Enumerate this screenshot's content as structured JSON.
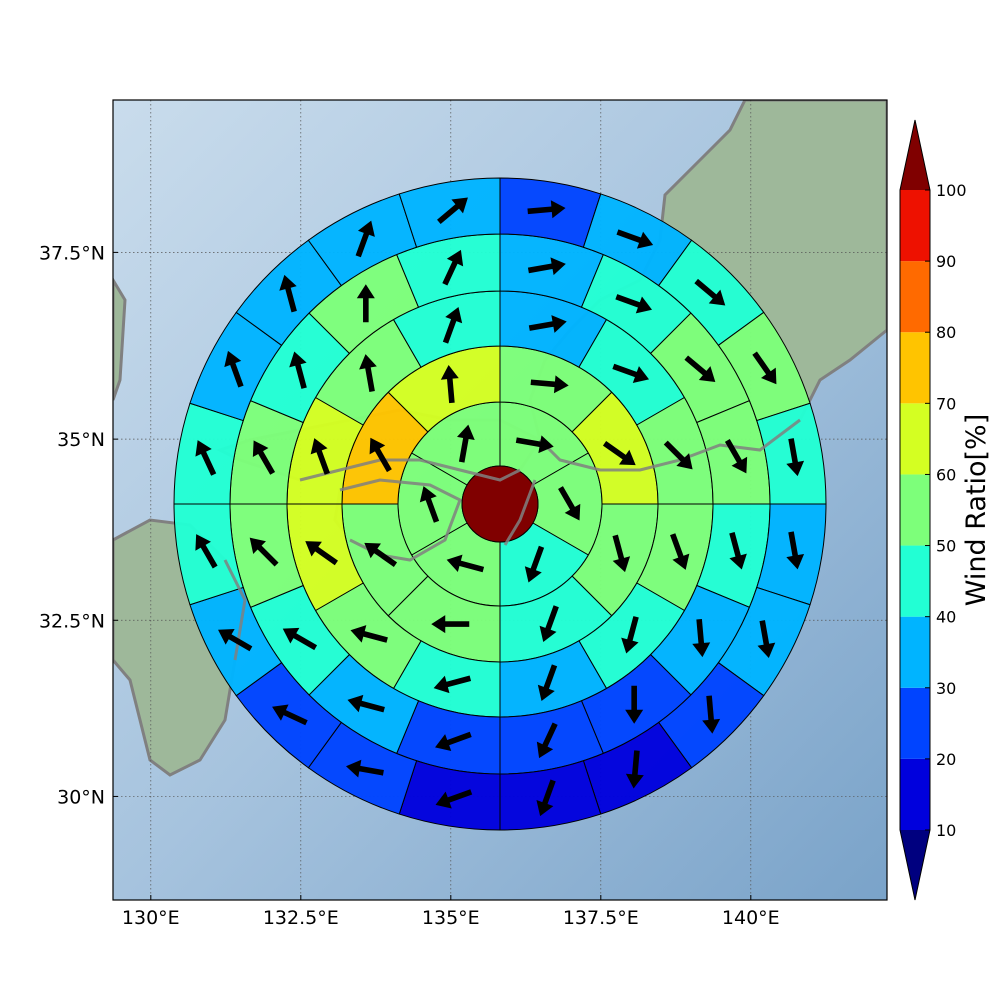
{
  "chart_data": {
    "type": "polar-sector",
    "projection": "mercator",
    "xlim": [
      129.37,
      142.27
    ],
    "ylim": [
      28.5,
      39.48
    ],
    "xticks": [
      {
        "value": 130,
        "label": "130°E"
      },
      {
        "value": 132.5,
        "label": "132.5°E"
      },
      {
        "value": 135,
        "label": "135°E"
      },
      {
        "value": 137.5,
        "label": "137.5°E"
      },
      {
        "value": 140,
        "label": "140°E"
      }
    ],
    "yticks": [
      {
        "value": 30,
        "label": "30°N"
      },
      {
        "value": 32.5,
        "label": "32.5°N"
      },
      {
        "value": 35,
        "label": "35°N"
      },
      {
        "value": 37.5,
        "label": "37.5°N"
      }
    ],
    "grid": true,
    "center_value": 105,
    "rings": [
      {
        "values": [
          55,
          55,
          45,
          55,
          55,
          55
        ],
        "directions": [
          100,
          150,
          200,
          285,
          340,
          10
        ]
      },
      {
        "values": [
          55,
          65,
          55,
          45,
          55,
          55,
          75,
          65
        ],
        "directions": [
          95,
          125,
          165,
          200,
          270,
          305,
          330,
          355
        ]
      },
      {
        "values": [
          35,
          45,
          55,
          55,
          45,
          35,
          45,
          55,
          65,
          65,
          55,
          45
        ],
        "directions": [
          80,
          110,
          135,
          160,
          195,
          200,
          255,
          285,
          305,
          340,
          350,
          20
        ]
      },
      {
        "values": [
          35,
          45,
          55,
          55,
          45,
          35,
          25,
          25,
          25,
          35,
          45,
          55,
          55,
          45,
          55,
          45
        ],
        "directions": [
          80,
          110,
          130,
          150,
          165,
          175,
          180,
          205,
          250,
          285,
          300,
          315,
          330,
          345,
          0,
          25
        ]
      },
      {
        "values": [
          25,
          35,
          45,
          55,
          45,
          35,
          35,
          25,
          15,
          15,
          15,
          25,
          25,
          35,
          45,
          45,
          35,
          35,
          35,
          35
        ],
        "directions": [
          85,
          110,
          130,
          145,
          170,
          170,
          170,
          175,
          185,
          200,
          250,
          280,
          295,
          300,
          330,
          335,
          340,
          345,
          20,
          50
        ]
      }
    ],
    "colorbar": {
      "label": "Wind Ratio[%]",
      "ticks": [
        10,
        20,
        30,
        40,
        50,
        60,
        70,
        80,
        90,
        100
      ],
      "colors": [
        "#00007f",
        "#0000dd",
        "#0044ff",
        "#00b4ff",
        "#22ffd4",
        "#7dff7a",
        "#d4ff22",
        "#ffc400",
        "#ff6a00",
        "#ee1100",
        "#800000"
      ]
    }
  }
}
